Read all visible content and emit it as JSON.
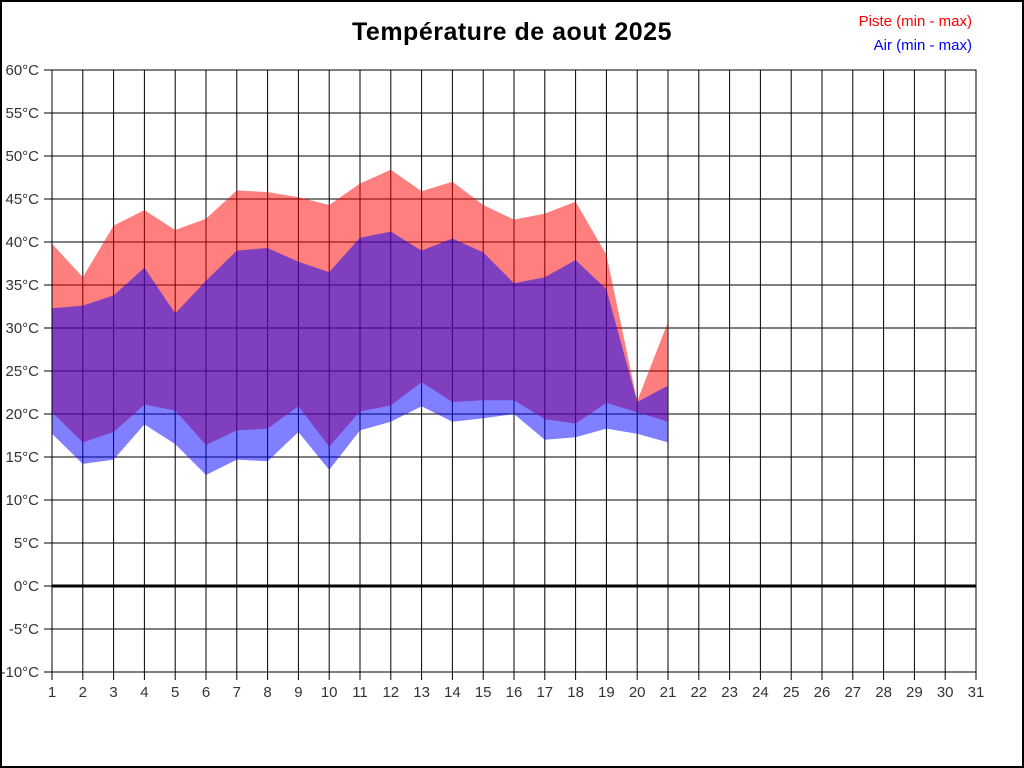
{
  "figure": {
    "title": "Température de aout 2025",
    "legend": [
      {
        "label": "Piste (min - max)",
        "color": "#ff0000"
      },
      {
        "label": "Air (min - max)",
        "color": "#0000ff"
      }
    ]
  },
  "chart_data": {
    "type": "area",
    "title": "Température de aout 2025",
    "xlabel": "",
    "ylabel": "°C",
    "grid": true,
    "legend_position": "top-right",
    "x_axis": {
      "range": [
        1,
        31
      ],
      "tick_labels": [
        "1",
        "2",
        "3",
        "4",
        "5",
        "6",
        "7",
        "8",
        "9",
        "10",
        "11",
        "12",
        "13",
        "14",
        "15",
        "16",
        "17",
        "18",
        "19",
        "20",
        "21",
        "22",
        "23",
        "24",
        "25",
        "26",
        "27",
        "28",
        "29",
        "30",
        "31"
      ]
    },
    "y_axis": {
      "range": [
        -10,
        60
      ],
      "tick_values": [
        60,
        55,
        50,
        45,
        40,
        35,
        30,
        25,
        20,
        15,
        10,
        5,
        0,
        -5,
        -10
      ],
      "tick_labels": [
        "60°C",
        "55°C",
        "50°C",
        "45°C",
        "40°C",
        "35°C",
        "30°C",
        "25°C",
        "20°C",
        "15°C",
        "10°C",
        "5°C",
        "0°C",
        "-5°C",
        "-10°C"
      ]
    },
    "zero_line_value": 0,
    "days": [
      1,
      2,
      3,
      4,
      5,
      6,
      7,
      8,
      9,
      10,
      11,
      12,
      13,
      14,
      15,
      16,
      17,
      18,
      19,
      20,
      21
    ],
    "series": [
      {
        "name": "Piste (min - max)",
        "color": "#ff0000",
        "fill_opacity": 0.5,
        "max": [
          39.8,
          35.9,
          41.9,
          43.7,
          41.4,
          42.7,
          46.0,
          45.8,
          45.2,
          44.3,
          46.8,
          48.4,
          45.9,
          47.0,
          44.3,
          42.6,
          43.3,
          44.7,
          38.5,
          21.5,
          30.7
        ],
        "min": [
          20.2,
          16.7,
          17.9,
          21.1,
          20.4,
          16.4,
          18.1,
          18.3,
          20.9,
          16.2,
          20.3,
          21.0,
          23.7,
          21.4,
          21.6,
          21.6,
          19.4,
          18.9,
          21.3,
          20.2,
          19.1
        ]
      },
      {
        "name": "Air (min - max)",
        "color": "#0000ff",
        "fill_opacity": 0.5,
        "max": [
          32.3,
          32.6,
          33.8,
          37.0,
          31.7,
          35.5,
          39.0,
          39.3,
          37.7,
          36.5,
          40.5,
          41.2,
          39.0,
          40.4,
          38.8,
          35.2,
          35.9,
          37.9,
          34.5,
          21.4,
          23.3
        ],
        "min": [
          17.7,
          14.2,
          14.7,
          18.8,
          16.5,
          12.9,
          14.7,
          14.5,
          17.9,
          13.5,
          18.1,
          19.1,
          20.9,
          19.1,
          19.5,
          20.0,
          17.0,
          17.3,
          18.3,
          17.7,
          16.7
        ]
      }
    ]
  }
}
